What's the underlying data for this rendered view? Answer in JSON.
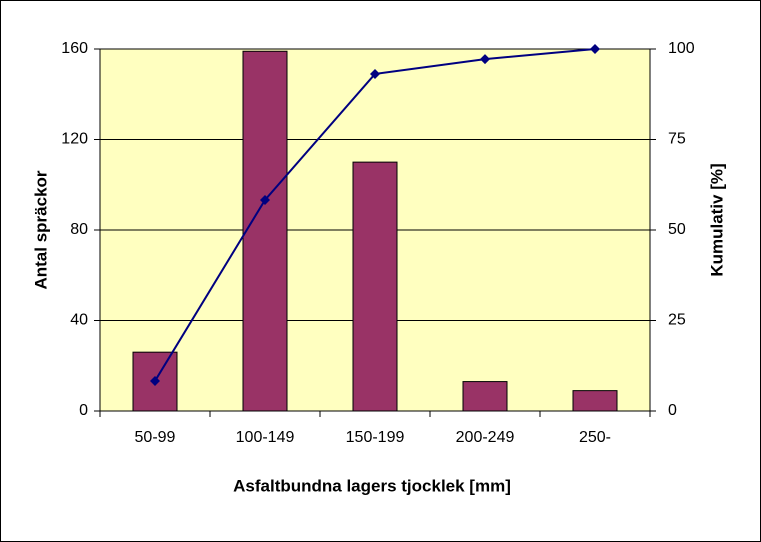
{
  "chart_data": {
    "type": "bar-line",
    "x_label": "Asfaltbundna lagers tjocklek [mm]",
    "y_label": "Antal spräckor",
    "y2_label": "Kumulativ [%]",
    "categories": [
      "50-99",
      "100-149",
      "150-199",
      "200-249",
      "250-"
    ],
    "series": [
      {
        "type": "bar",
        "color": "#993366",
        "values": [
          26,
          159,
          110,
          13,
          9
        ]
      },
      {
        "type": "line",
        "color": "#000080",
        "axis": "y2",
        "values": [
          8.3,
          58.3,
          93.1,
          97.2,
          100
        ]
      }
    ],
    "ylim": [
      0,
      160
    ],
    "yticks": [
      0,
      40,
      80,
      120,
      160
    ],
    "y2lim": [
      0,
      100
    ],
    "y2ticks": [
      0,
      25,
      50,
      75,
      100
    ],
    "grid": true,
    "plot_background": "#ffffc0"
  }
}
